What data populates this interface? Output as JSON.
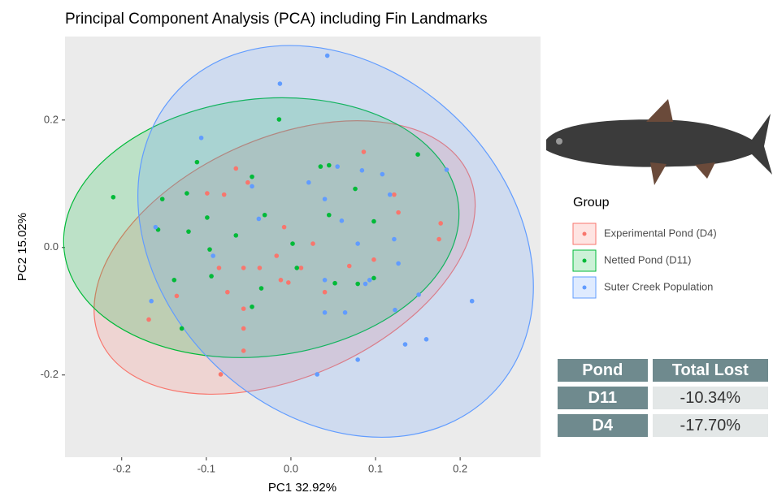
{
  "chart_data": {
    "type": "scatter",
    "title": "Principal Component Analysis (PCA) including Fin Landmarks",
    "x_label": "PC1 32.92%",
    "y_label": "PC2 15.02%",
    "xlim": [
      -0.267,
      0.295
    ],
    "ylim": [
      -0.329,
      0.331
    ],
    "xticks": [
      -0.2,
      -0.1,
      {
        "value": 0,
        "label": "0.0"
      },
      0.1,
      0.2
    ],
    "yticks": [
      -0.2,
      {
        "value": 0,
        "label": "0.0"
      },
      0.2
    ],
    "legend_title": "Group",
    "legend": "right",
    "ellipses": true,
    "series": [
      {
        "name": "Experimental Pond (D4)",
        "color": "#F8766D",
        "x": [
          -0.168,
          -0.083,
          -0.056,
          0.177,
          0.086,
          -0.099,
          -0.065,
          -0.051,
          -0.079,
          -0.085,
          -0.075,
          -0.056,
          -0.037,
          -0.017,
          -0.012,
          -0.003,
          0.012,
          0.026,
          0.069,
          0.122,
          0.127,
          0.175,
          -0.135,
          -0.056,
          -0.056,
          -0.008,
          0.04,
          0.098
        ],
        "values": [
          -0.113,
          -0.199,
          -0.162,
          0.038,
          0.15,
          0.085,
          0.124,
          0.102,
          0.083,
          -0.032,
          -0.07,
          -0.096,
          -0.032,
          -0.013,
          -0.051,
          -0.055,
          -0.032,
          0.006,
          -0.029,
          0.083,
          0.055,
          0.013,
          -0.076,
          -0.127,
          -0.032,
          0.032,
          -0.07,
          -0.019
        ]
      },
      {
        "name": "Netted Pond (D11)",
        "color": "#00BA38",
        "x": [
          -0.21,
          -0.014,
          0.15,
          -0.129,
          -0.138,
          -0.111,
          -0.123,
          -0.152,
          -0.099,
          -0.065,
          -0.046,
          -0.031,
          0.035,
          0.045,
          0.076,
          0.098,
          0.045,
          0.052,
          0.098,
          -0.035,
          -0.096,
          -0.094,
          -0.157,
          -0.121,
          0.002,
          0.007,
          -0.046,
          0.079
        ],
        "values": [
          0.079,
          0.201,
          0.146,
          -0.127,
          -0.051,
          0.134,
          0.085,
          0.076,
          0.047,
          0.019,
          0.111,
          0.051,
          0.127,
          0.129,
          0.092,
          0.041,
          0.051,
          -0.056,
          -0.048,
          -0.064,
          -0.003,
          -0.045,
          0.028,
          0.025,
          0.006,
          -0.032,
          -0.093,
          -0.057
        ]
      },
      {
        "name": "Suter Creek Population",
        "color": "#619CFF",
        "x": [
          0.043,
          -0.013,
          -0.106,
          0.184,
          -0.165,
          0.214,
          0.031,
          0.079,
          0.135,
          0.16,
          0.123,
          0.151,
          -0.038,
          0.04,
          0.06,
          0.079,
          0.084,
          0.055,
          0.108,
          0.122,
          0.127,
          0.088,
          0.04,
          0.064,
          -0.092,
          0.04,
          0.093,
          -0.16,
          -0.046,
          0.117,
          0.021
        ],
        "values": [
          0.301,
          0.257,
          0.172,
          0.122,
          -0.084,
          -0.084,
          -0.199,
          -0.176,
          -0.152,
          -0.144,
          -0.098,
          -0.074,
          0.045,
          0.076,
          0.042,
          0.006,
          0.121,
          0.127,
          0.115,
          0.013,
          -0.025,
          -0.057,
          -0.051,
          -0.102,
          -0.013,
          -0.102,
          -0.051,
          0.032,
          0.096,
          0.083,
          0.102
        ]
      }
    ]
  },
  "table": {
    "header": [
      "Pond",
      "Total Lost"
    ],
    "rows": [
      [
        "D11",
        "-10.34%"
      ],
      [
        "D4",
        "-17.70%"
      ]
    ]
  }
}
